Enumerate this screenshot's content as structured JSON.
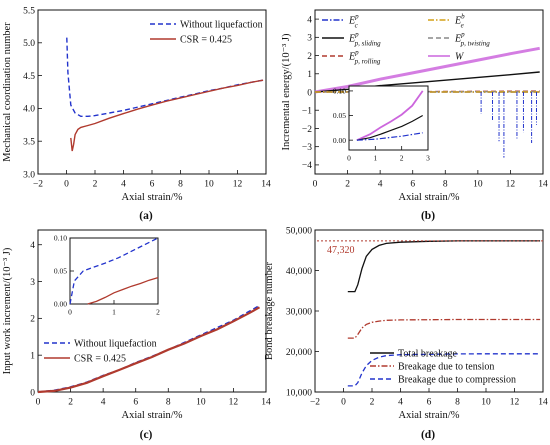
{
  "panels": [
    {
      "label": "(a)",
      "chart_data": {
        "type": "line",
        "xlabel": "Axial strain/%",
        "ylabel": "Mechanical coordination number",
        "xlim": [
          -2,
          14
        ],
        "ylim": [
          3.0,
          5.5
        ],
        "xticks": [
          -2,
          0,
          2,
          4,
          6,
          8,
          10,
          12,
          14
        ],
        "yticks": [
          3.0,
          3.5,
          4.0,
          4.5,
          5.0,
          5.5
        ],
        "ytick_labels": [
          "3.0",
          "3.5",
          "4.0",
          "4.5",
          "5.0",
          "5.5"
        ],
        "legend_position": "top-right",
        "series": [
          {
            "name": "Without liquefaction",
            "color": "#2233cc",
            "style": "dashed",
            "x": [
              0.02,
              0.1,
              0.3,
              0.6,
              1.0,
              1.5,
              2.0,
              3.0,
              4.0,
              5.0,
              6.0,
              7.0,
              8.0,
              9.0,
              10.0,
              11.0,
              12.0,
              13.0,
              13.8
            ],
            "y": [
              5.08,
              4.55,
              4.05,
              3.93,
              3.88,
              3.88,
              3.89,
              3.93,
              3.97,
              4.02,
              4.07,
              4.12,
              4.17,
              4.22,
              4.27,
              4.31,
              4.36,
              4.4,
              4.43
            ]
          },
          {
            "name": "CSR = 0.425",
            "color": "#b03a2e",
            "style": "solid",
            "x": [
              0.3,
              0.4,
              0.5,
              0.6,
              0.8,
              1.0,
              1.5,
              2.0,
              3.0,
              4.0,
              5.0,
              6.0,
              7.0,
              8.0,
              9.0,
              10.0,
              11.0,
              12.0,
              13.0,
              13.8
            ],
            "y": [
              3.55,
              3.35,
              3.45,
              3.6,
              3.68,
              3.71,
              3.74,
              3.77,
              3.85,
              3.92,
              3.99,
              4.05,
              4.11,
              4.16,
              4.21,
              4.26,
              4.31,
              4.35,
              4.4,
              4.43
            ]
          }
        ]
      }
    },
    {
      "label": "(b)",
      "chart_data": {
        "type": "line",
        "xlabel": "Axial strain/%",
        "ylabel": "Incremental energy/(10⁻³ J)",
        "xlim": [
          0,
          14
        ],
        "ylim": [
          -4.5,
          4.5
        ],
        "xticks": [
          0,
          2,
          4,
          6,
          8,
          10,
          12,
          14
        ],
        "yticks": [
          -4,
          -3,
          -2,
          -1,
          0,
          1,
          2,
          3,
          4
        ],
        "ytick_labels": [
          "−4",
          "−3",
          "−2",
          "−1",
          "0",
          "1",
          "2",
          "3",
          "4"
        ],
        "legend_position": "top",
        "legend": [
          {
            "symbol": "E",
            "sup": "p",
            "sub": "c",
            "color": "#2233cc",
            "style": "dashdot"
          },
          {
            "symbol": "E",
            "sup": "b",
            "sub": "e",
            "color": "#d4a017",
            "style": "dashdot"
          },
          {
            "symbol": "E",
            "sup": "p",
            "sub": "p, sliding",
            "color": "#111111",
            "style": "solid"
          },
          {
            "symbol": "E",
            "sup": "p",
            "sub": "p, twisting",
            "color": "#888888",
            "style": "dashed"
          },
          {
            "symbol": "E",
            "sup": "p",
            "sub": "p, rolling",
            "color": "#b03a2e",
            "style": "dashed"
          },
          {
            "symbol": "W",
            "sup": "",
            "sub": "",
            "color": "#cc66dd",
            "style": "solid"
          }
        ],
        "series": [
          {
            "name": "W",
            "x": [
              0,
              2,
              4,
              6,
              8,
              10,
              12,
              13.8
            ],
            "y": [
              0,
              0.3,
              0.7,
              1.05,
              1.4,
              1.75,
              2.1,
              2.4
            ]
          },
          {
            "name": "E_p,sliding",
            "x": [
              0,
              2,
              4,
              6,
              8,
              10,
              12,
              13.8
            ],
            "y": [
              0,
              0.15,
              0.35,
              0.5,
              0.65,
              0.8,
              0.95,
              1.1
            ]
          },
          {
            "name": "E_c",
            "x": [
              0,
              2,
              4,
              6,
              8,
              10,
              12,
              13.8
            ],
            "y": [
              0,
              0,
              0,
              0,
              0,
              0,
              0,
              0
            ]
          },
          {
            "name": "E_p,rolling",
            "x": [
              0,
              13.8
            ],
            "y": [
              0,
              0.05
            ]
          },
          {
            "name": "E_p,twisting",
            "x": [
              0,
              13.8
            ],
            "y": [
              0,
              0.02
            ]
          },
          {
            "name": "E_e",
            "x": [
              0,
              13.8
            ],
            "y": [
              0,
              0
            ]
          }
        ],
        "spikes_down": [
          [
            10.2,
            -1.2
          ],
          [
            10.9,
            -1.6
          ],
          [
            11.3,
            -2.7
          ],
          [
            11.6,
            -3.6
          ],
          [
            12.4,
            -2.6
          ],
          [
            12.8,
            -2.2
          ],
          [
            13.3,
            -2.8
          ],
          [
            13.6,
            -1.8
          ]
        ],
        "inset": {
          "xlim": [
            0,
            3
          ],
          "ylim": [
            -0.02,
            0.11
          ],
          "xticks": [
            0,
            1,
            2,
            3
          ],
          "yticks": [
            0.0,
            0.05,
            0.1
          ],
          "ytick_labels": [
            "0.00",
            "0.05",
            "0.10"
          ],
          "series": [
            {
              "name": "W",
              "x": [
                0.3,
                0.8,
                1.2,
                1.6,
                2.0,
                2.4,
                2.8
              ],
              "y": [
                0.0,
                0.012,
                0.026,
                0.038,
                0.052,
                0.07,
                0.1
              ]
            },
            {
              "name": "E_p,sliding",
              "x": [
                0.3,
                0.8,
                1.2,
                1.6,
                2.0,
                2.4,
                2.8
              ],
              "y": [
                0.0,
                0.005,
                0.012,
                0.02,
                0.028,
                0.038,
                0.05
              ]
            },
            {
              "name": "E_c",
              "x": [
                0.3,
                1.0,
                2.0,
                2.8
              ],
              "y": [
                0.0,
                0.002,
                0.008,
                0.015
              ]
            }
          ]
        }
      }
    },
    {
      "label": "(c)",
      "chart_data": {
        "type": "line",
        "xlabel": "Axial strain/%",
        "ylabel": "Input work increment/(10⁻³ J)",
        "xlim": [
          0,
          14
        ],
        "ylim": [
          0,
          4.4
        ],
        "xticks": [
          0,
          2,
          4,
          6,
          8,
          10,
          12,
          14
        ],
        "yticks": [
          0,
          1,
          2,
          3,
          4
        ],
        "ytick_labels": [
          "0",
          "1",
          "2",
          "3",
          "4"
        ],
        "legend_position": "bottom-left",
        "series": [
          {
            "name": "Without liquefaction",
            "color": "#2233cc",
            "style": "dashed",
            "x": [
              0,
              1,
              2,
              3,
              4,
              5,
              6,
              7,
              8,
              9,
              10,
              11,
              12,
              13,
              13.6
            ],
            "y": [
              0.0,
              0.05,
              0.14,
              0.27,
              0.45,
              0.6,
              0.8,
              0.97,
              1.15,
              1.35,
              1.55,
              1.75,
              1.95,
              2.2,
              2.35
            ]
          },
          {
            "name": "CSR = 0.425",
            "color": "#b03a2e",
            "style": "solid",
            "x": [
              0,
              1,
              2,
              3,
              4,
              5,
              6,
              7,
              8,
              9,
              10,
              11,
              12,
              13,
              13.6
            ],
            "y": [
              0.0,
              0.03,
              0.12,
              0.25,
              0.43,
              0.6,
              0.78,
              0.95,
              1.15,
              1.32,
              1.52,
              1.7,
              1.92,
              2.15,
              2.3
            ]
          }
        ],
        "inset": {
          "xlim": [
            0,
            2
          ],
          "ylim": [
            0,
            0.1
          ],
          "xticks": [
            0,
            1,
            2
          ],
          "yticks": [
            0.0,
            0.05,
            0.1
          ],
          "ytick_labels": [
            "0.00",
            "0.05",
            "0.10"
          ],
          "series": [
            {
              "name": "Without liquefaction",
              "x": [
                0,
                0.1,
                0.3,
                0.5,
                0.8,
                1.1,
                1.4,
                1.7,
                2.0
              ],
              "y": [
                0.0,
                0.035,
                0.05,
                0.055,
                0.062,
                0.07,
                0.08,
                0.09,
                0.1
              ]
            },
            {
              "name": "CSR = 0.425",
              "x": [
                0.4,
                0.6,
                0.8,
                1.0,
                1.2,
                1.4,
                1.6,
                1.8,
                2.0
              ],
              "y": [
                0.0,
                0.004,
                0.01,
                0.017,
                0.022,
                0.027,
                0.031,
                0.036,
                0.04
              ]
            }
          ]
        }
      }
    },
    {
      "label": "(d)",
      "chart_data": {
        "type": "line",
        "xlabel": "Axial strain/%",
        "ylabel": "Bond breakage number",
        "xlim": [
          -2,
          14
        ],
        "ylim": [
          10000,
          50000
        ],
        "xticks": [
          -2,
          0,
          2,
          4,
          6,
          8,
          10,
          12,
          14
        ],
        "yticks": [
          10000,
          20000,
          30000,
          40000,
          50000
        ],
        "ytick_labels": [
          "10,000",
          "20,000",
          "30,000",
          "40,000",
          "50,000"
        ],
        "legend_position": "bottom-right",
        "annotation": {
          "text": "47,320",
          "value": 47320
        },
        "series": [
          {
            "name": "Total breakage",
            "color": "#111111",
            "style": "solid",
            "x": [
              0.3,
              0.8,
              1.0,
              1.3,
              1.6,
              2.0,
              2.5,
              3.0,
              4.0,
              6.0,
              8.0,
              10.0,
              12.0,
              13.8
            ],
            "y": [
              34800,
              34800,
              36500,
              40500,
              43500,
              45200,
              46200,
              46700,
              47000,
              47200,
              47300,
              47320,
              47320,
              47320
            ]
          },
          {
            "name": "Breakage due to tension",
            "color": "#b03a2e",
            "style": "dashdot",
            "x": [
              0.3,
              0.8,
              1.0,
              1.3,
              1.6,
              2.0,
              2.5,
              3.0,
              4.0,
              6.0,
              8.0,
              10.0,
              12.0,
              13.8
            ],
            "y": [
              23300,
              23300,
              24200,
              25800,
              26700,
              27200,
              27500,
              27700,
              27800,
              27850,
              27900,
              27900,
              27900,
              27900
            ]
          },
          {
            "name": "Breakage due to compression",
            "color": "#2233cc",
            "style": "dashed",
            "x": [
              0.3,
              0.8,
              1.0,
              1.3,
              1.6,
              2.0,
              2.5,
              3.0,
              4.0,
              6.0,
              8.0,
              10.0,
              12.0,
              13.8
            ],
            "y": [
              11500,
              11500,
              12300,
              14700,
              16500,
              17800,
              18600,
              19000,
              19200,
              19300,
              19400,
              19420,
              19420,
              19420
            ]
          }
        ]
      }
    }
  ]
}
